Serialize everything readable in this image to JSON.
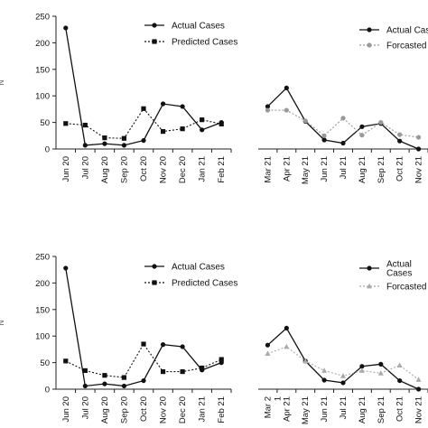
{
  "chart_data": [
    {
      "type": "line",
      "categories": [
        "Jun 20",
        "Jul 20",
        "Aug 20",
        "Sep 20",
        "Oct 20",
        "Nov 20",
        "Dec 20",
        "Jan 21",
        "Feb 21"
      ],
      "series": [
        {
          "name": "Actual Cases",
          "values": [
            228,
            7,
            10,
            7,
            16,
            85,
            80,
            36,
            50
          ],
          "color": "#111111",
          "style": "solid",
          "marker": "circle"
        },
        {
          "name": "Predicted Cases",
          "values": [
            48,
            45,
            21,
            20,
            76,
            33,
            38,
            55,
            47
          ],
          "color": "#111111",
          "style": "dotted",
          "marker": "square"
        }
      ],
      "yticks": [
        0,
        50,
        100,
        150,
        200,
        250
      ],
      "ylim": [
        0,
        250
      ],
      "ylabel_fragment": "N",
      "legend": "top-right"
    },
    {
      "type": "line",
      "categories": [
        "Mar 21",
        "Apr 21",
        "May 21",
        "Jun 21",
        "Jul 21",
        "Aug 21",
        "Sep 21",
        "Oct 21",
        "Nov 21"
      ],
      "series": [
        {
          "name": "Actual Cas",
          "values": [
            80,
            115,
            52,
            17,
            11,
            42,
            48,
            15,
            0
          ],
          "color": "#111111",
          "style": "solid",
          "marker": "circle"
        },
        {
          "name": "Forcasted C",
          "values": [
            73,
            73,
            53,
            25,
            58,
            26,
            50,
            27,
            22
          ],
          "color": "#999999",
          "style": "dotted",
          "marker": "circle"
        }
      ],
      "ylim": [
        0,
        250
      ],
      "legend": "top-right"
    },
    {
      "type": "line",
      "categories": [
        "Jun 20",
        "Jul 20",
        "Aug 20",
        "Sep 20",
        "Oct 20",
        "Nov 20",
        "Dec 20",
        "Jan 21",
        "Feb 21"
      ],
      "series": [
        {
          "name": "Actual Cases",
          "values": [
            228,
            6,
            10,
            6,
            16,
            84,
            80,
            36,
            50
          ],
          "color": "#111111",
          "style": "solid",
          "marker": "circle"
        },
        {
          "name": "Predicted Cases",
          "values": [
            53,
            35,
            26,
            22,
            85,
            33,
            33,
            40,
            56
          ],
          "color": "#111111",
          "style": "dotted",
          "marker": "square"
        }
      ],
      "yticks": [
        0,
        50,
        100,
        150,
        200,
        250
      ],
      "ylim": [
        0,
        250
      ],
      "ylabel_fragment": "N",
      "legend": "top-right"
    },
    {
      "type": "line",
      "categories": [
        "Mar 2\n1",
        "Apr 21",
        "May 21",
        "Jun 21",
        "Jul 21",
        "Aug 21",
        "Sep 21",
        "Oct 21",
        "Nov 21"
      ],
      "series": [
        {
          "name": "Actual\nCases",
          "values": [
            83,
            115,
            53,
            17,
            12,
            43,
            47,
            16,
            0
          ],
          "color": "#111111",
          "style": "solid",
          "marker": "circle"
        },
        {
          "name": "Forcasted C",
          "values": [
            67,
            80,
            53,
            35,
            25,
            35,
            30,
            45,
            18
          ],
          "color": "#aaaaaa",
          "style": "dotted",
          "marker": "triangle"
        }
      ],
      "ylim": [
        0,
        250
      ],
      "legend": "top-right"
    }
  ]
}
